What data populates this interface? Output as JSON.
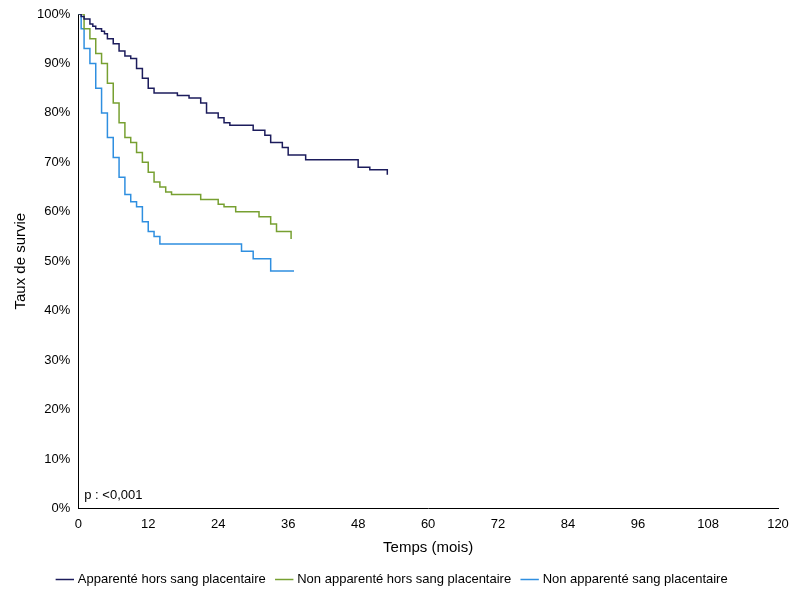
{
  "chart_data": {
    "type": "line",
    "x_label": "Temps (mois)",
    "y_label": "Taux de survie",
    "annotation": "p : <0,001",
    "xlim": [
      0,
      120
    ],
    "xticks": [
      0,
      12,
      24,
      36,
      48,
      60,
      72,
      84,
      96,
      108,
      120
    ],
    "ylim": [
      0,
      100
    ],
    "yticks": [
      {
        "value": 0,
        "label": "0%"
      },
      {
        "value": 10,
        "label": "10%"
      },
      {
        "value": 20,
        "label": "20%"
      },
      {
        "value": 30,
        "label": "30%"
      },
      {
        "value": 40,
        "label": "40%"
      },
      {
        "value": 50,
        "label": "50%"
      },
      {
        "value": 60,
        "label": "60%"
      },
      {
        "value": 70,
        "label": "70%"
      },
      {
        "value": 80,
        "label": "80%"
      },
      {
        "value": 90,
        "label": "90%"
      },
      {
        "value": 100,
        "label": "100%"
      }
    ],
    "grid": false,
    "legend": "bottom",
    "series": [
      {
        "name": "Apparenté hors sang placentaire",
        "color": "#1c1c5c",
        "x": [
          0,
          0.5,
          1,
          2,
          2.5,
          3,
          4,
          4.5,
          5,
          6,
          7,
          8,
          9,
          10,
          11,
          12,
          13,
          16,
          17,
          19,
          21,
          22,
          24,
          25,
          26,
          29,
          30,
          32,
          33,
          35,
          36,
          38,
          39,
          47,
          48,
          50,
          53
        ],
        "values": [
          100,
          99.5,
          99,
          98,
          97.5,
          97,
          96.5,
          96,
          95,
          94,
          92.5,
          91.5,
          91,
          89,
          87,
          85,
          84,
          84,
          83.5,
          83,
          82,
          80,
          79,
          78,
          77.5,
          77.5,
          76.5,
          75.5,
          74,
          73,
          71.5,
          71.5,
          70.5,
          70.5,
          69,
          68.5,
          67.5
        ]
      },
      {
        "name": "Non apparenté hors sang placentaire",
        "color": "#77a031",
        "x": [
          0,
          1,
          2,
          3,
          4,
          5,
          6,
          7,
          8,
          9,
          10,
          11,
          12,
          13,
          14,
          15,
          16,
          20,
          21,
          24,
          25,
          27,
          30,
          31,
          33,
          34,
          36,
          36.5
        ],
        "values": [
          100,
          97,
          95,
          92,
          90,
          86,
          82,
          78,
          75,
          74,
          72,
          70,
          68,
          66,
          65,
          64,
          63.5,
          63.5,
          62.5,
          61.5,
          61,
          60,
          60,
          59,
          57.5,
          56,
          56,
          54.5
        ]
      },
      {
        "name": "Non apparenté sang placentaire",
        "color": "#2f8fe0",
        "x": [
          0,
          0.5,
          1,
          2,
          3,
          4,
          5,
          6,
          7,
          8,
          9,
          10,
          11,
          12,
          13,
          14,
          27,
          28,
          30,
          32,
          33,
          37
        ],
        "values": [
          100,
          97,
          93,
          90,
          85,
          80,
          75,
          71,
          67,
          63.5,
          62,
          61,
          58,
          56,
          55,
          53.5,
          53.5,
          52,
          50.5,
          50.5,
          48,
          48
        ]
      }
    ]
  }
}
